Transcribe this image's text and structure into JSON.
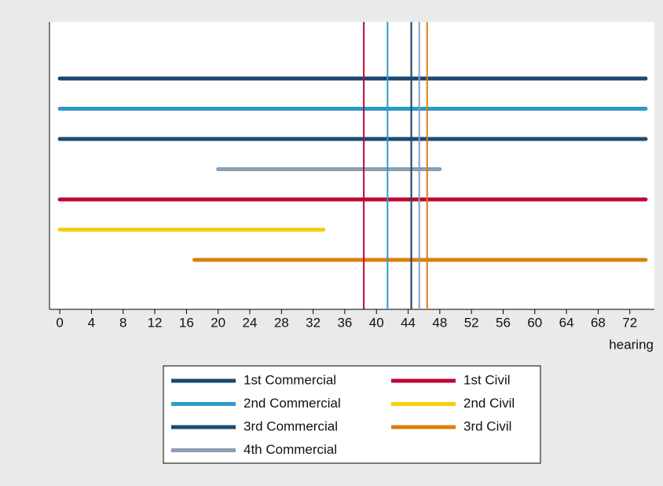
{
  "chart_data": {
    "type": "range",
    "x_label": "hearing",
    "xlim": [
      -1.3,
      75.1
    ],
    "xticks": [
      0,
      4,
      8,
      12,
      16,
      20,
      24,
      28,
      32,
      36,
      40,
      44,
      48,
      52,
      56,
      60,
      64,
      68,
      72
    ],
    "series": [
      {
        "name": "1st Commercial",
        "color": "#1a476f",
        "start": 0,
        "end": 74,
        "line": 44.4
      },
      {
        "name": "2nd Commercial",
        "color": "#2e9ac9",
        "start": 0,
        "end": 74,
        "line": 41.4
      },
      {
        "name": "3rd Commercial",
        "color": "#1f4a6e",
        "start": 0,
        "end": 74,
        "line": 44.4
      },
      {
        "name": "4th Commercial",
        "color": "#8b9fb3",
        "start": 20,
        "end": 48,
        "line": 45.4
      },
      {
        "name": "1st Civil",
        "color": "#c10534",
        "start": 0,
        "end": 74,
        "line": 38.4
      },
      {
        "name": "2nd Civil",
        "color": "#f5cf0c",
        "start": 0,
        "end": 33.3,
        "line": null
      },
      {
        "name": "3rd Civil",
        "color": "#d8800e",
        "start": 17,
        "end": 74,
        "line": 46.4
      }
    ]
  }
}
